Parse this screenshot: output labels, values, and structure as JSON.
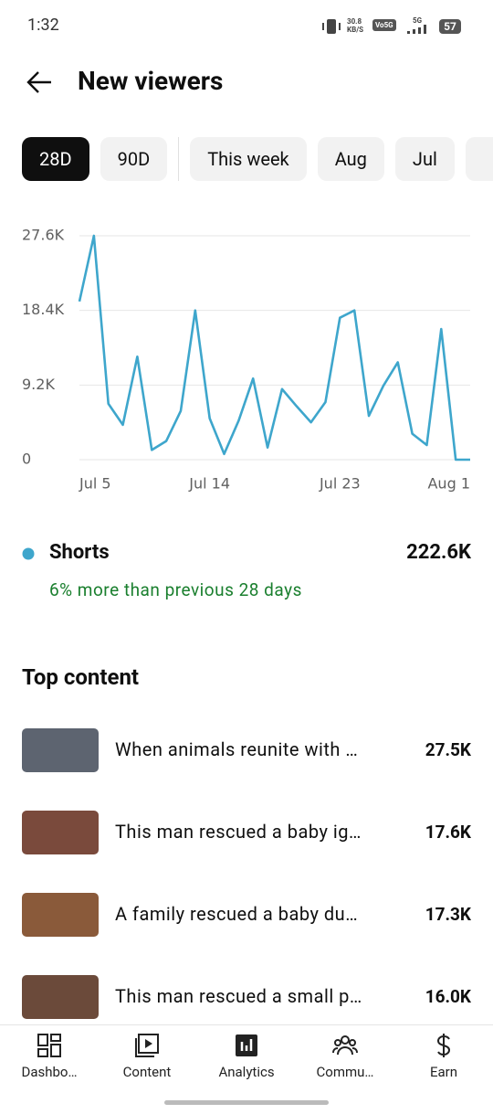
{
  "status_bar": {
    "time": "1:32",
    "speed": "30.8",
    "speed_unit": "KB/S",
    "network": "Vo5G",
    "signal": "5G",
    "battery": "57"
  },
  "header": {
    "title": "New viewers"
  },
  "chips": {
    "labels": [
      "28D",
      "90D",
      "This week",
      "Aug",
      "Jul"
    ],
    "selected": 0
  },
  "chart_data": {
    "type": "line",
    "categories": [
      "Jul 5",
      null,
      null,
      null,
      null,
      null,
      null,
      null,
      null,
      "Jul 14",
      null,
      null,
      null,
      null,
      null,
      null,
      null,
      null,
      "Jul 23",
      null,
      null,
      null,
      null,
      null,
      null,
      null,
      null,
      "Aug 1"
    ],
    "series": [
      {
        "name": "Shorts",
        "color": "#3ea6cc",
        "values": [
          19500,
          27600,
          6900,
          4300,
          12700,
          1200,
          2300,
          6000,
          18400,
          5100,
          700,
          4800,
          10000,
          1500,
          8700,
          6600,
          4600,
          7100,
          17500,
          18400,
          5400,
          9100,
          12000,
          3200,
          1800,
          16100,
          0,
          0
        ]
      }
    ],
    "ylim": [
      0,
      27600
    ],
    "yticks": [
      0,
      {
        "value": 9200,
        "label": "9.2K"
      },
      {
        "value": 18400,
        "label": "18.4K"
      },
      {
        "value": 27600,
        "label": "27.6K"
      }
    ],
    "grid": true
  },
  "summary": {
    "total": "222.6K",
    "comparison": "6% more than previous 28 days"
  },
  "top_content": {
    "title": "Top content",
    "items": [
      {
        "title": "When animals reunite with …",
        "views": "27.5K"
      },
      {
        "title": "This man rescued a baby ig…",
        "views": "17.6K"
      },
      {
        "title": "A family rescued a baby du…",
        "views": "17.3K"
      },
      {
        "title": "This man rescued a small p…",
        "views": "16.0K"
      }
    ]
  },
  "nav": [
    "Dashbo…",
    "Content",
    "Analytics",
    "Commu…",
    "Earn"
  ]
}
